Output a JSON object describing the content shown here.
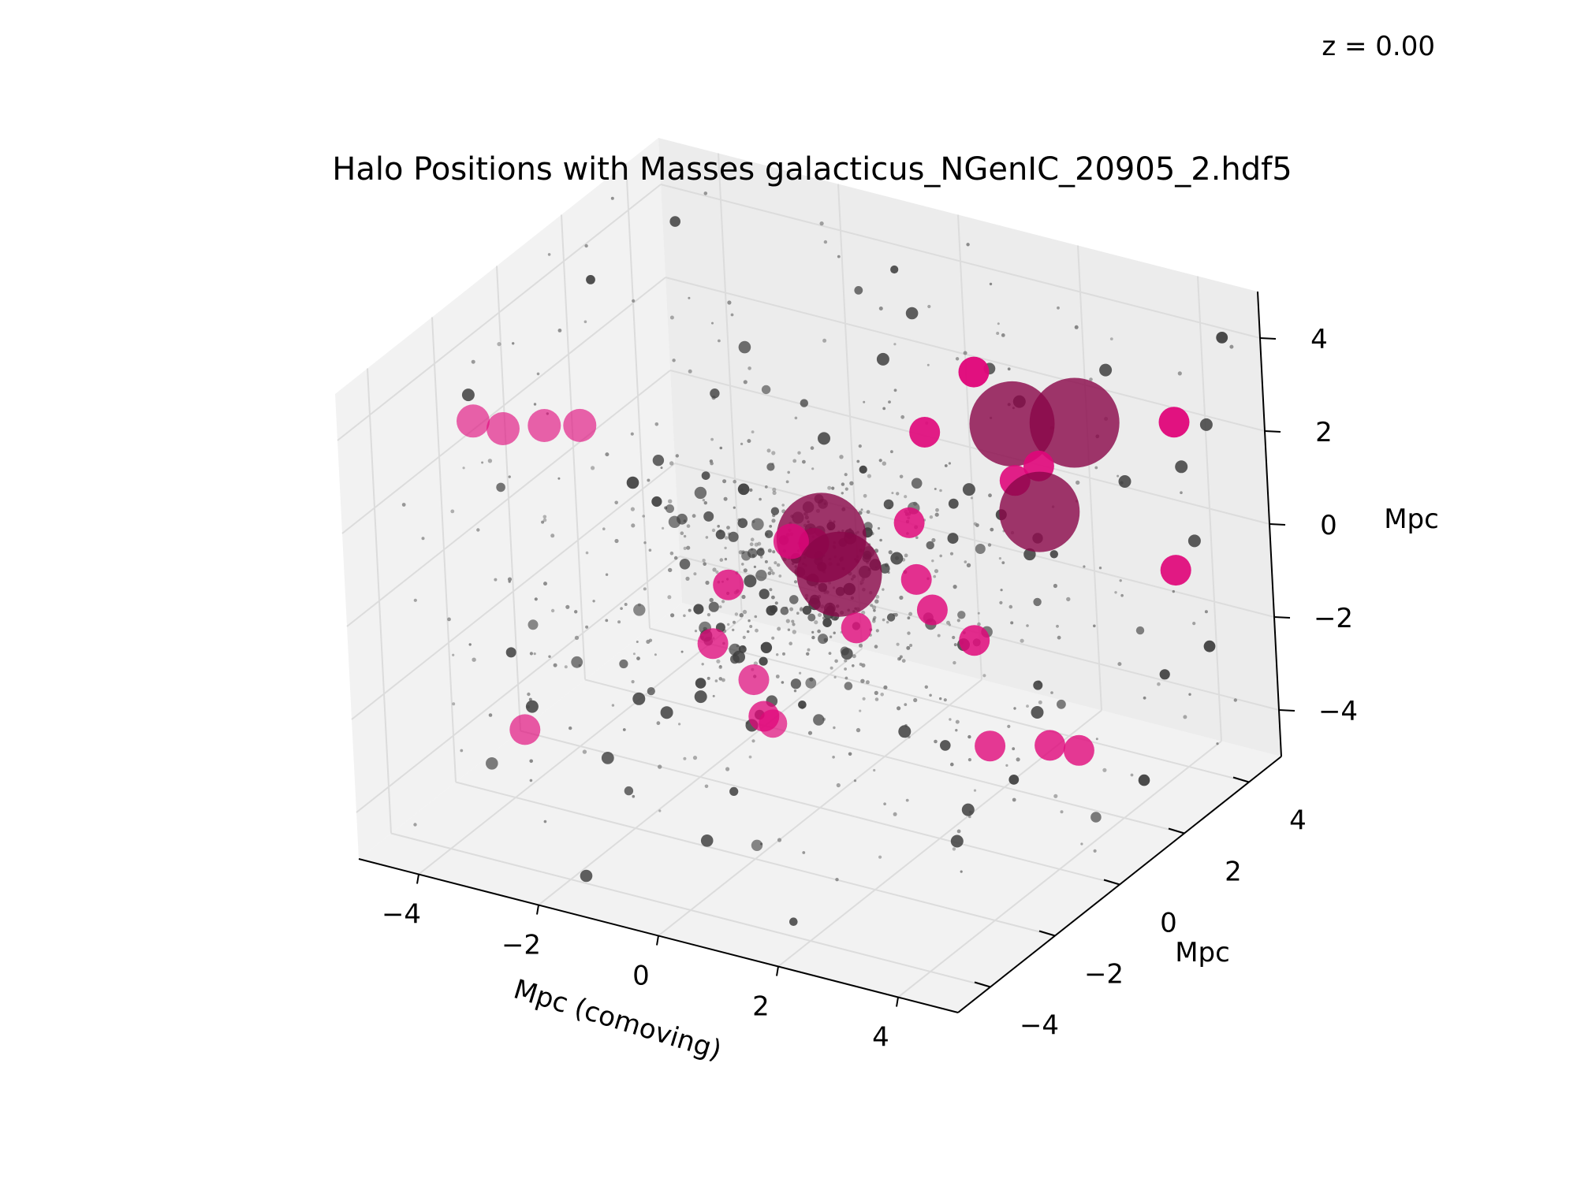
{
  "chart_data": {
    "type": "scatter",
    "projection": "3d",
    "title": "Halo Positions with Masses galacticus_NGenIC_20905_2.hdf5",
    "annotation": "z = 0.00",
    "xlabel": "Mpc (comoving)",
    "ylabel": "Mpc",
    "zlabel": "Mpc",
    "xlim": [
      -5,
      5
    ],
    "ylim": [
      -5,
      5
    ],
    "zlim": [
      -5,
      5
    ],
    "xticks": [
      "−4",
      "−2",
      "0",
      "2",
      "4"
    ],
    "yticks": [
      "−4",
      "−2",
      "0",
      "2",
      "4"
    ],
    "zticks": [
      "−4",
      "−2",
      "0",
      "2",
      "4"
    ],
    "grid": true,
    "colors": {
      "massive_halo": "#e0067a",
      "halo": "#404040",
      "subhalo": "#808080",
      "massive_halo_dark": "#8a0648"
    },
    "series": [
      {
        "name": "",
        "role": "massive_halo",
        "points": [
          {
            "x": -3.6,
            "y": -3.4,
            "z": 4.0,
            "size": 1.4
          },
          {
            "x": -3.1,
            "y": -3.4,
            "z": 4.0,
            "size": 1.4
          },
          {
            "x": -2.4,
            "y": -3.4,
            "z": 4.3,
            "size": 1.4
          },
          {
            "x": -1.8,
            "y": -3.4,
            "z": 4.5,
            "size": 1.4
          },
          {
            "x": -3.5,
            "y": -2.5,
            "z": -3.1,
            "size": 1.3
          },
          {
            "x": -0.7,
            "y": -0.3,
            "z": -3.1,
            "size": 1.3
          },
          {
            "x": -0.1,
            "y": -1.6,
            "z": -1.4,
            "size": 1.3
          },
          {
            "x": 0.3,
            "y": -1.8,
            "z": -2.1,
            "size": 1.2
          },
          {
            "x": -0.2,
            "y": 0.8,
            "z": 0.3,
            "size": 3.8
          },
          {
            "x": -0.6,
            "y": 0.6,
            "z": 0.2,
            "size": 1.5
          },
          {
            "x": 0.3,
            "y": 0.4,
            "z": -0.1,
            "size": 3.6
          },
          {
            "x": 0.6,
            "y": 0.3,
            "z": -1.1,
            "size": 1.3
          },
          {
            "x": 1.2,
            "y": 1.1,
            "z": -0.3,
            "size": 1.3
          },
          {
            "x": 1.5,
            "y": 1.0,
            "z": -0.8,
            "size": 1.3
          },
          {
            "x": 0.9,
            "y": 1.5,
            "z": 0.6,
            "size": 1.3
          },
          {
            "x": 0.5,
            "y": 2.8,
            "z": 1.7,
            "size": 1.3
          },
          {
            "x": 0.7,
            "y": 4.0,
            "z": 2.4,
            "size": 1.3
          },
          {
            "x": 1.7,
            "y": 3.3,
            "z": 2.0,
            "size": 3.6
          },
          {
            "x": 2.7,
            "y": 3.4,
            "z": 2.3,
            "size": 3.8
          },
          {
            "x": 2.6,
            "y": 2.4,
            "z": 0.9,
            "size": 3.4
          },
          {
            "x": 2.1,
            "y": 2.6,
            "z": 1.3,
            "size": 1.3
          },
          {
            "x": 2.4,
            "y": 2.8,
            "z": 1.6,
            "size": 1.3
          },
          {
            "x": 4.1,
            "y": 3.9,
            "z": 2.5,
            "size": 1.3
          },
          {
            "x": 4.4,
            "y": 3.2,
            "z": -0.2,
            "size": 1.3
          },
          {
            "x": 2.7,
            "y": 0.4,
            "z": -3.0,
            "size": 1.3
          },
          {
            "x": 3.6,
            "y": 0.6,
            "z": -2.8,
            "size": 1.3
          },
          {
            "x": 4.2,
            "y": 0.4,
            "z": -2.6,
            "size": 1.3
          },
          {
            "x": 1.9,
            "y": 1.5,
            "z": -1.6,
            "size": 1.3
          },
          {
            "x": -1.5,
            "y": -0.3,
            "z": -1.8,
            "size": 1.3
          },
          {
            "x": -1.7,
            "y": 0.6,
            "z": -1.1,
            "size": 1.3
          },
          {
            "x": -0.9,
            "y": 1.8,
            "z": -0.6,
            "size": 1.3
          }
        ]
      },
      {
        "name": "",
        "role": "halo",
        "points": [
          {
            "x": -4.0,
            "y": -2.8,
            "z": 4.1
          },
          {
            "x": -3.7,
            "y": -1.9,
            "z": -3.0
          },
          {
            "x": -2.4,
            "y": -1.0,
            "z": -2.9
          },
          {
            "x": -1.6,
            "y": -1.6,
            "z": -2.6
          },
          {
            "x": -0.4,
            "y": -1.2,
            "z": -2.7
          },
          {
            "x": 0.1,
            "y": 0.5,
            "z": 2.7
          },
          {
            "x": 0.2,
            "y": 2.2,
            "z": 3.5
          },
          {
            "x": 0.7,
            "y": 1.4,
            "z": -3.9
          },
          {
            "x": 1.2,
            "y": 2.8,
            "z": 0.7
          },
          {
            "x": 1.9,
            "y": 3.2,
            "z": 2.6
          },
          {
            "x": 3.1,
            "y": 3.7,
            "z": 3.4
          },
          {
            "x": 3.5,
            "y": 3.4,
            "z": 1.3
          },
          {
            "x": 3.9,
            "y": 4.4,
            "z": 1.2
          },
          {
            "x": 4.4,
            "y": 3.8,
            "z": 0.1
          },
          {
            "x": 4.7,
            "y": 3.8,
            "z": 2.7
          },
          {
            "x": 3.3,
            "y": 0.8,
            "z": -2.3
          },
          {
            "x": 2.9,
            "y": -0.7,
            "z": -3.7
          },
          {
            "x": -0.5,
            "y": -2.5,
            "z": -1.4
          },
          {
            "x": -0.1,
            "y": 0.3,
            "z": -0.3
          },
          {
            "x": 0.4,
            "y": 0.6,
            "z": 0.6
          },
          {
            "x": 1.0,
            "y": 0.9,
            "z": 0.2
          },
          {
            "x": -1.1,
            "y": 0.2,
            "z": -0.6
          },
          {
            "x": 1.6,
            "y": 1.7,
            "z": -1.9
          },
          {
            "x": 2.8,
            "y": -0.9,
            "z": -4.3
          }
        ]
      },
      {
        "name": "",
        "role": "subhalo",
        "points": []
      }
    ]
  }
}
